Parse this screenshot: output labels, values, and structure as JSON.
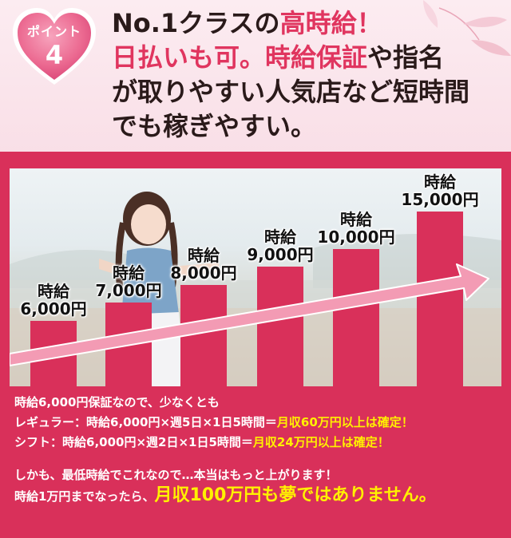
{
  "badge": {
    "label": "ポイント",
    "number": "4"
  },
  "headline": {
    "line1_pre": "No.1クラスの",
    "line1_red": "高時給！",
    "line2_red1": "日払いも可。",
    "line2_red2": "時給保証",
    "line2_rest": "や指名",
    "line3": "が取りやすい人気店など短時間",
    "line4": "でも稼ぎやすい。"
  },
  "chart_data": {
    "type": "bar",
    "categories": [
      "時給 6,000円",
      "時給 7,000円",
      "時給 8,000円",
      "時給 9,000円",
      "時給 10,000円",
      "時給 15,000円"
    ],
    "values": [
      6000,
      7000,
      8000,
      9000,
      10000,
      15000
    ],
    "labels_top": [
      "時給",
      "時給",
      "時給",
      "時給",
      "時給",
      "時給"
    ],
    "labels_bottom": [
      "6,000円",
      "7,000円",
      "8,000円",
      "9,000円",
      "10,000円",
      "15,000円"
    ],
    "title": "",
    "xlabel": "",
    "ylabel": "",
    "bar_color": "#d9305a"
  },
  "info": {
    "line1": "時給6,000円保証なので、少なくとも",
    "line2_pre": "レギュラー：時給6,000円×週5日×1日5時間＝",
    "line2_hl": "月収60万円以上は確定！",
    "line3_pre": "シフト：時給6,000円×週2日×1日5時間＝",
    "line3_hl": "月収24万円以上は確定！",
    "line4": "しかも、最低時給でこれなので…本当はもっと上がります！",
    "line5_pre": "時給1万円までなったら、",
    "line5_hl": "月収100万円も夢ではありません。"
  },
  "colors": {
    "accent": "#e0355f",
    "panel": "#d9305a",
    "highlight": "#fff100"
  }
}
